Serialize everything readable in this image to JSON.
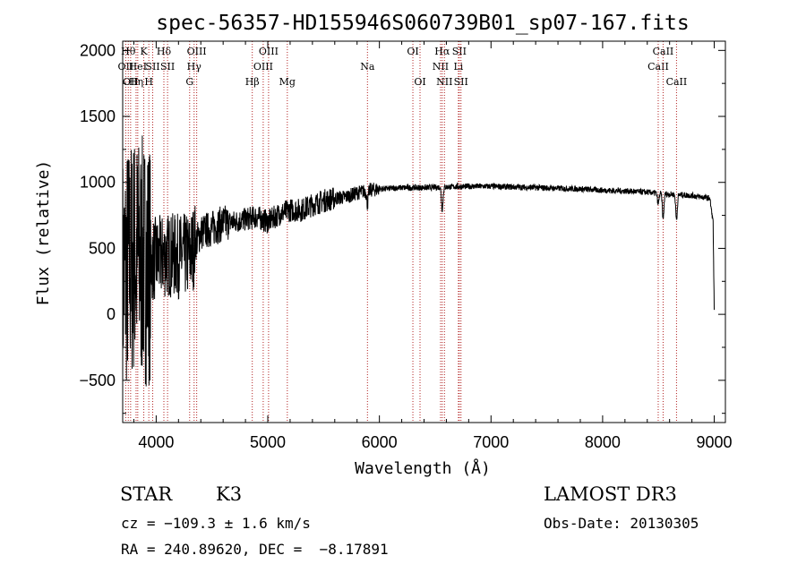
{
  "chart_data": {
    "type": "line",
    "title": "spec-56357-HD155946S060739B01_sp07-167.fits",
    "xlabel": "Wavelength (Å)",
    "ylabel": "Flux (relative)",
    "xlim": [
      3700,
      9100
    ],
    "ylim": [
      -820,
      2070
    ],
    "xticks": [
      4000,
      5000,
      6000,
      7000,
      8000,
      9000
    ],
    "yticks": [
      -500,
      0,
      500,
      1000,
      1500,
      2000
    ],
    "grid": false,
    "line_color": "#000000",
    "marker_color": "#b22222",
    "spectrum_anchors": {
      "x": [
        3700,
        3800,
        3900,
        4000,
        4100,
        4200,
        4300,
        4400,
        4500,
        4600,
        4700,
        4800,
        4900,
        5000,
        5100,
        5200,
        5300,
        5400,
        5500,
        5600,
        5700,
        5800,
        5900,
        6000,
        6200,
        6400,
        6600,
        6800,
        7000,
        7200,
        7400,
        7600,
        7800,
        8000,
        8200,
        8400,
        8600,
        8800,
        8960,
        8990,
        9000
      ],
      "y": [
        300,
        450,
        400,
        420,
        450,
        440,
        450,
        620,
        650,
        690,
        700,
        720,
        740,
        700,
        760,
        790,
        790,
        830,
        860,
        880,
        890,
        920,
        940,
        950,
        960,
        960,
        965,
        970,
        970,
        965,
        960,
        955,
        950,
        940,
        935,
        925,
        910,
        900,
        880,
        700,
        20
      ]
    },
    "absorption_dips": [
      {
        "x": 5893,
        "depth": 100
      },
      {
        "x": 6563,
        "depth": 170
      },
      {
        "x": 8498,
        "depth": 80
      },
      {
        "x": 8542,
        "depth": 190
      },
      {
        "x": 8662,
        "depth": 190
      }
    ],
    "line_markers": [
      {
        "x": 3727,
        "label": "OII",
        "row": 1
      },
      {
        "x": 3750,
        "label": "Hθ",
        "row": 0
      },
      {
        "x": 3771,
        "label": "OII",
        "row": 2
      },
      {
        "x": 3820,
        "label": "Hη",
        "row": 2
      },
      {
        "x": 3835,
        "label": "HeI",
        "row": 1
      },
      {
        "x": 3889,
        "label": "K",
        "row": 0
      },
      {
        "x": 3934,
        "label": "H",
        "row": 2
      },
      {
        "x": 3969,
        "label": "SII",
        "row": 1
      },
      {
        "x": 4069,
        "label": "Hδ",
        "row": 0
      },
      {
        "x": 4102,
        "label": "SII",
        "row": 1
      },
      {
        "x": 4300,
        "label": "G",
        "row": 2
      },
      {
        "x": 4340,
        "label": "Hγ",
        "row": 1
      },
      {
        "x": 4363,
        "label": "OIII",
        "row": 0
      },
      {
        "x": 4861,
        "label": "Hβ",
        "row": 2
      },
      {
        "x": 4959,
        "label": "OIII",
        "row": 1
      },
      {
        "x": 5007,
        "label": "OIII",
        "row": 0
      },
      {
        "x": 5175,
        "label": "Mg",
        "row": 2
      },
      {
        "x": 5893,
        "label": "Na",
        "row": 1
      },
      {
        "x": 6300,
        "label": "OI",
        "row": 0
      },
      {
        "x": 6364,
        "label": "OI",
        "row": 2
      },
      {
        "x": 6548,
        "label": "NII",
        "row": 1
      },
      {
        "x": 6563,
        "label": "Hα",
        "row": 0
      },
      {
        "x": 6583,
        "label": "NII",
        "row": 2
      },
      {
        "x": 6708,
        "label": "Li",
        "row": 1
      },
      {
        "x": 6716,
        "label": "SII",
        "row": 0
      },
      {
        "x": 6731,
        "label": "SII",
        "row": 2
      },
      {
        "x": 8498,
        "label": "CaII",
        "row": 1
      },
      {
        "x": 8542,
        "label": "CaII",
        "row": 0
      },
      {
        "x": 8662,
        "label": "CaII",
        "row": 2
      }
    ]
  },
  "info": {
    "class": "STAR",
    "subclass": "K3",
    "survey": "LAMOST DR3",
    "cz": "cz = −109.3 ± 1.6 km/s",
    "obs_date": "Obs-Date: 20130305",
    "coords": "RA = 240.89620, DEC =  −8.17891"
  }
}
